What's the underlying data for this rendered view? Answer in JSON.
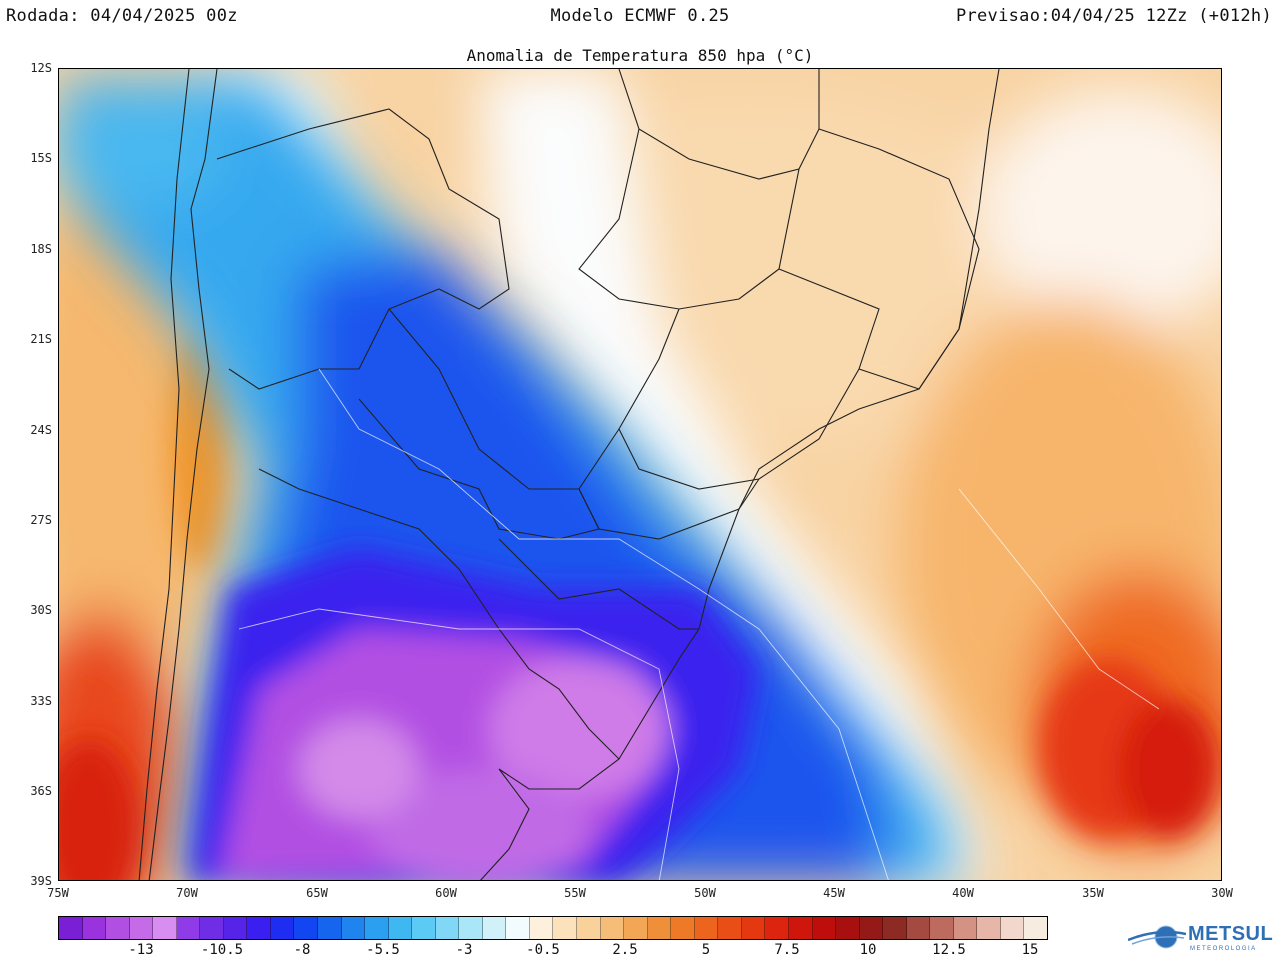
{
  "header": {
    "left": "Rodada: 04/04/2025 00z",
    "center": "Modelo ECMWF 0.25",
    "right": "Previsao:04/04/25 12Zz (+012h)"
  },
  "map": {
    "title": "Anomalia de Temperatura 850 hpa (°C)",
    "lat_labels": [
      "12S",
      "15S",
      "18S",
      "21S",
      "24S",
      "27S",
      "30S",
      "33S",
      "36S",
      "39S"
    ],
    "lon_labels": [
      "75W",
      "70W",
      "65W",
      "60W",
      "55W",
      "50W",
      "45W",
      "40W",
      "35W",
      "30W"
    ]
  },
  "colorbar": {
    "labels": [
      "-13",
      "-10.5",
      "-8",
      "-5.5",
      "-3",
      "-0.5",
      "2.5",
      "5",
      "7.5",
      "10",
      "12.5",
      "15"
    ],
    "colors": [
      "#7a1fd6",
      "#9a33dd",
      "#b24fe3",
      "#c56be8",
      "#d88df0",
      "#8f3be8",
      "#6f2ee6",
      "#5524e8",
      "#3a1ff0",
      "#1f2cf2",
      "#1246f0",
      "#1565ee",
      "#1f84ee",
      "#2ba0f0",
      "#3fb8f2",
      "#5bcaf4",
      "#80d8f6",
      "#a8e6f8",
      "#d0f1fa",
      "#f2fbfd",
      "#fdf1dd",
      "#fbe2bd",
      "#f8d19b",
      "#f5bd78",
      "#f2a656",
      "#f08f3a",
      "#ee7a28",
      "#ec641d",
      "#e94e16",
      "#e43811",
      "#dc240e",
      "#cf160c",
      "#be0e0c",
      "#a8100f",
      "#951a17",
      "#8e2a24",
      "#a54a40",
      "#bd6b5f",
      "#d39283",
      "#e6b7a8",
      "#f2d8cc",
      "#f7ece0"
    ]
  },
  "logo": {
    "name": "METSUL",
    "subtitle": "METEOROLOGIA"
  }
}
